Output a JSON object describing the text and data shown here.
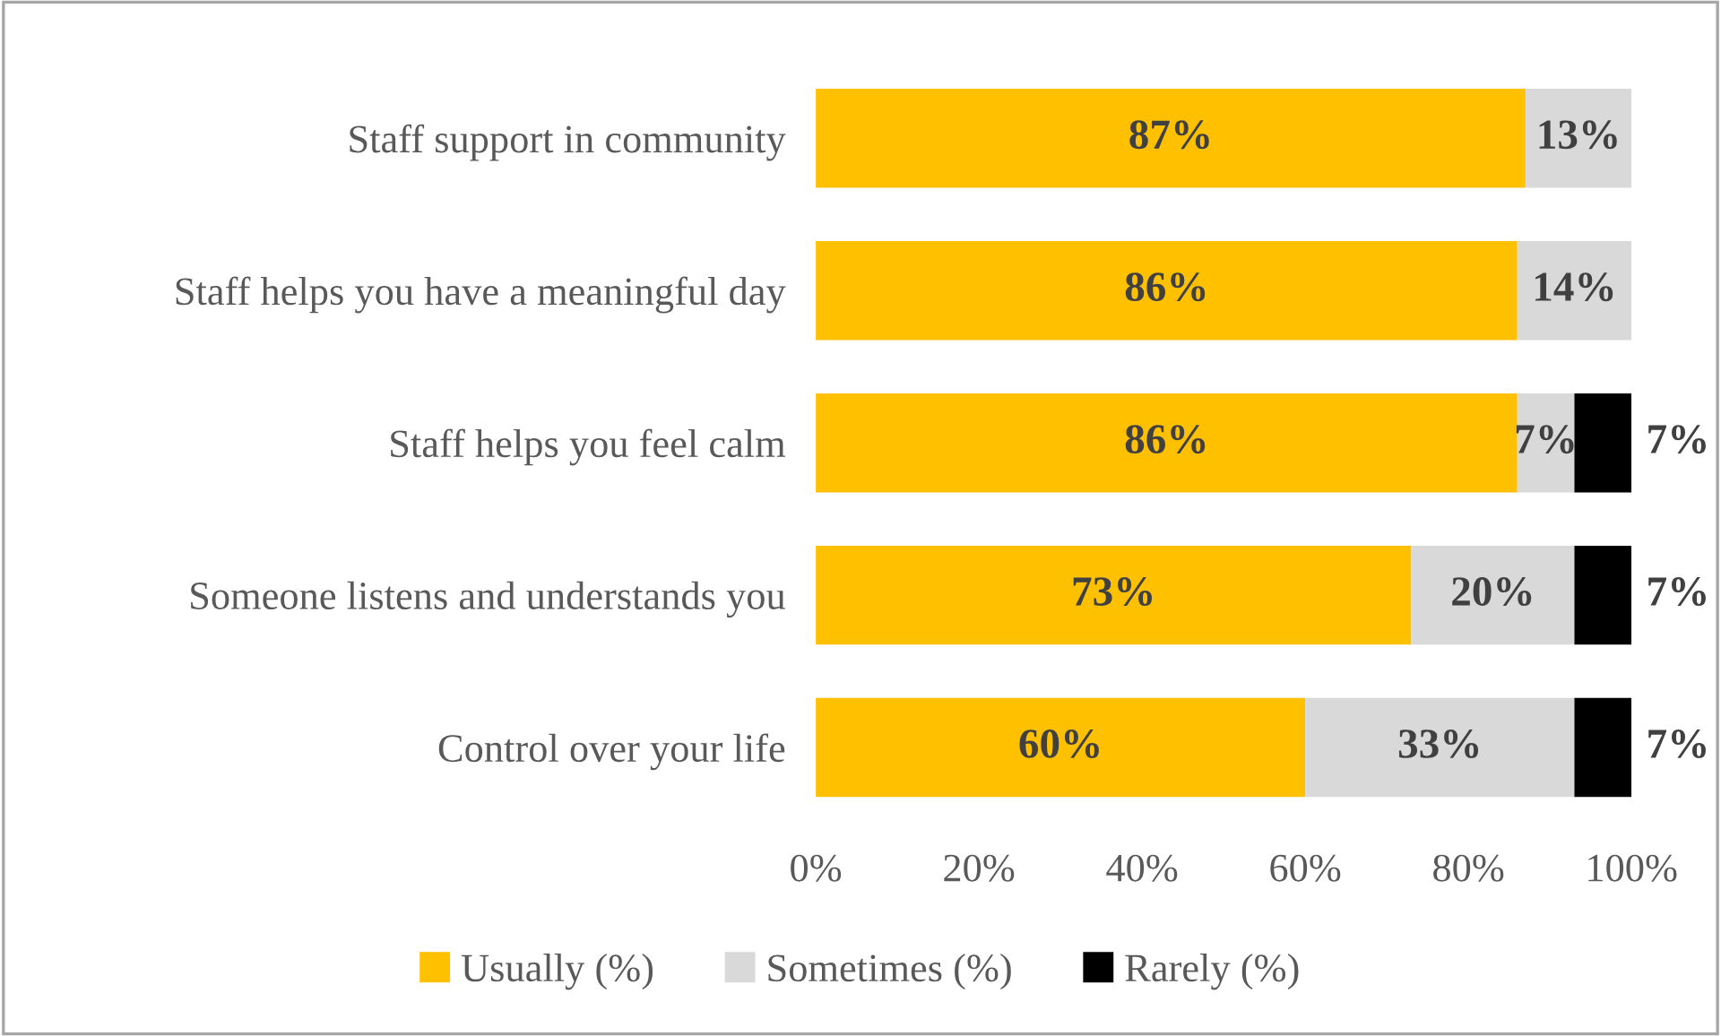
{
  "chart_data": {
    "type": "bar",
    "orientation": "horizontal",
    "stacked": true,
    "categories": [
      "Staff support in community",
      "Staff helps you have a meaningful day",
      "Staff helps you feel calm",
      "Someone listens and understands you",
      "Control over your life"
    ],
    "series": [
      {
        "name": "Usually (%)",
        "color": "#ffc000",
        "values": [
          87,
          86,
          86,
          73,
          60
        ],
        "value_labels": [
          "87%",
          "86%",
          "86%",
          "73%",
          "60%"
        ]
      },
      {
        "name": "Sometimes (%)",
        "color": "#d9d9d9",
        "values": [
          13,
          14,
          7,
          20,
          33
        ],
        "value_labels": [
          "13%",
          "14%",
          "7%",
          "20%",
          "33%"
        ]
      },
      {
        "name": "Rarely (%)",
        "color": "#000000",
        "values": [
          null,
          null,
          7,
          7,
          7
        ],
        "value_labels": [
          null,
          null,
          "7%",
          "7%",
          "7%"
        ]
      }
    ],
    "xlim": [
      0,
      100
    ],
    "xticks": [
      {
        "value": 0,
        "label": "0%"
      },
      {
        "value": 20,
        "label": "20%"
      },
      {
        "value": 40,
        "label": "40%"
      },
      {
        "value": 60,
        "label": "60%"
      },
      {
        "value": 80,
        "label": "80%"
      },
      {
        "value": 100,
        "label": "100%"
      }
    ],
    "grid": false,
    "legend": "bottom"
  }
}
